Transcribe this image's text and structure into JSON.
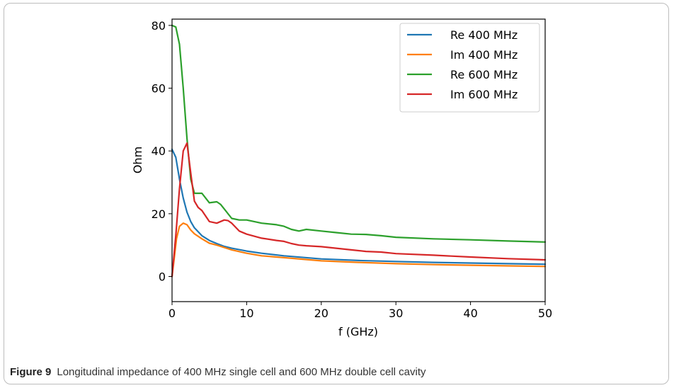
{
  "figure": {
    "label": "Figure 9",
    "caption": "Longitudinal impedance of 400 MHz single cell and 600 MHz double cell cavity"
  },
  "chart_data": {
    "type": "line",
    "title": "",
    "xlabel": "f (GHz)",
    "ylabel": "Ohm",
    "xlim": [
      0,
      50
    ],
    "ylim": [
      -8,
      82
    ],
    "xticks": [
      0,
      10,
      20,
      30,
      40,
      50
    ],
    "yticks": [
      0,
      20,
      40,
      60,
      80
    ],
    "legend_position": "top-right",
    "grid": false,
    "series": [
      {
        "name": "Re 400 MHz",
        "color": "#1f77b4",
        "x": [
          0,
          0.5,
          1,
          1.5,
          2,
          2.5,
          3,
          4,
          5,
          6,
          7,
          8,
          10,
          12,
          15,
          20,
          25,
          30,
          35,
          40,
          45,
          50
        ],
        "y": [
          40.5,
          38,
          31,
          25,
          20.5,
          17.5,
          15.5,
          13,
          11.5,
          10.5,
          9.6,
          9,
          8.1,
          7.4,
          6.6,
          5.6,
          5.1,
          4.8,
          4.5,
          4.3,
          4.1,
          3.9
        ]
      },
      {
        "name": "Im 400 MHz",
        "color": "#ff7f0e",
        "x": [
          0,
          0.3,
          0.6,
          1,
          1.5,
          2,
          2.5,
          3,
          4,
          5,
          6,
          8,
          10,
          12,
          15,
          20,
          25,
          30,
          35,
          40,
          45,
          50
        ],
        "y": [
          0,
          6,
          12,
          16,
          17,
          16.5,
          14.8,
          13.6,
          12,
          10.6,
          10,
          8.5,
          7.4,
          6.6,
          6,
          5,
          4.5,
          4.1,
          3.8,
          3.6,
          3.4,
          3.2
        ]
      },
      {
        "name": "Re 600 MHz",
        "color": "#2ca02c",
        "x": [
          0,
          0.5,
          1,
          1.5,
          2,
          2.5,
          3,
          4,
          5,
          6,
          6.5,
          7,
          8,
          9,
          10,
          12,
          14,
          15,
          16,
          17,
          18,
          20,
          22,
          24,
          26,
          28,
          30,
          35,
          40,
          45,
          50
        ],
        "y": [
          80,
          79.5,
          74,
          60,
          44,
          31,
          26.5,
          26.5,
          23.5,
          23.8,
          23,
          21.5,
          18.5,
          18,
          18,
          17,
          16.5,
          16,
          15,
          14.5,
          15,
          14.5,
          14,
          13.5,
          13.4,
          13,
          12.5,
          12,
          11.7,
          11.3,
          11
        ]
      },
      {
        "name": "Im 600 MHz",
        "color": "#d62728",
        "x": [
          0,
          0.5,
          1,
          1.5,
          2,
          2.5,
          3,
          3.5,
          4,
          5,
          6,
          7,
          7.5,
          8,
          9,
          10,
          12,
          14,
          15,
          16,
          17,
          18,
          20,
          22,
          24,
          26,
          28,
          30,
          35,
          40,
          45,
          50
        ],
        "y": [
          0,
          13,
          28,
          40,
          42.5,
          33,
          24,
          22,
          21,
          17.5,
          17,
          18,
          17.8,
          17,
          14.5,
          13.5,
          12.2,
          11.5,
          11.2,
          10.5,
          10,
          9.8,
          9.5,
          9,
          8.5,
          8,
          7.8,
          7.3,
          6.8,
          6.2,
          5.7,
          5.3
        ]
      }
    ]
  }
}
